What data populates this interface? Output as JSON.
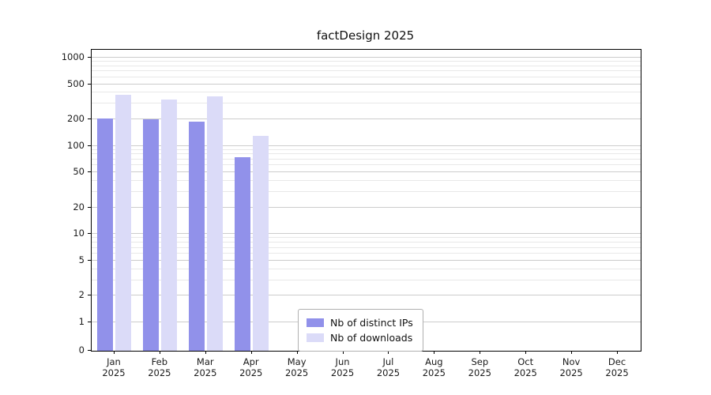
{
  "title": "factDesign 2025",
  "chart_data": {
    "type": "bar",
    "title": "factDesign 2025",
    "categories": [
      "Jan 2025",
      "Feb 2025",
      "Mar 2025",
      "Apr 2025",
      "May 2025",
      "Jun 2025",
      "Jul 2025",
      "Aug 2025",
      "Sep 2025",
      "Oct 2025",
      "Nov 2025",
      "Dec 2025"
    ],
    "series": [
      {
        "name": "Nb of distinct IPs",
        "color": "#9191ea",
        "values": [
          205,
          198,
          188,
          74,
          0,
          0,
          0,
          0,
          0,
          0,
          0,
          0
        ]
      },
      {
        "name": "Nb of downloads",
        "color": "#dbdbf8",
        "values": [
          380,
          335,
          365,
          130,
          0,
          0,
          0,
          0,
          0,
          0,
          0,
          0
        ]
      }
    ],
    "yscale": "symlog",
    "y_ticks": [
      0,
      1,
      2,
      5,
      10,
      20,
      50,
      100,
      200,
      500,
      1000
    ],
    "y_minor": [
      3,
      4,
      6,
      7,
      8,
      9,
      30,
      40,
      60,
      70,
      80,
      90,
      300,
      400,
      600,
      700,
      800,
      900
    ],
    "ylim": [
      0,
      1225
    ],
    "grid": "horizontal",
    "legend_position": "lower center"
  }
}
